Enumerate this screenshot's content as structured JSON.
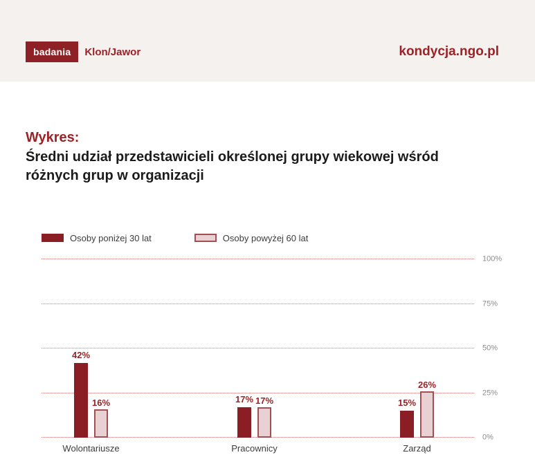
{
  "header": {
    "logo_badge": "badania",
    "logo_text": "Klon/Jawor",
    "site": "kondycja.ngo.pl"
  },
  "title": {
    "label": "Wykres:",
    "text": "Średni udział przedstawicieli określonej grupy wiekowej wśród różnych grup w organizacji"
  },
  "colors": {
    "header_background": "#f5f1ee",
    "brand_red": "#8e2125",
    "text_red": "#9b2227",
    "bar_dark": "#8b1e24",
    "bar_light_fill": "#e8d0d3",
    "bar_light_border": "#a24e55",
    "gridline": "#c87676",
    "tick_label": "#8c8c8c",
    "category_label": "#3c3c3c"
  },
  "chart_data": {
    "type": "bar",
    "categories": [
      "Wolontariusze",
      "Pracownicy",
      "Zarząd"
    ],
    "series": [
      {
        "name": "Osoby poniżej 30 lat",
        "values": [
          42,
          17,
          15
        ],
        "color": "#8b1e24"
      },
      {
        "name": "Osoby powyżej 60 lat",
        "values": [
          16,
          17,
          26
        ],
        "color": "#e8d0d3",
        "border": "#a24e55"
      }
    ],
    "value_suffix": "%",
    "value_labels": "above-bars",
    "yticks": [
      0,
      25,
      50,
      75,
      100
    ],
    "ytick_labels": [
      "0%",
      "25%",
      "50%",
      "75%",
      "100%"
    ],
    "ylim": [
      0,
      100
    ],
    "grid": "dotted-horizontal",
    "legend_position": "top-left"
  }
}
